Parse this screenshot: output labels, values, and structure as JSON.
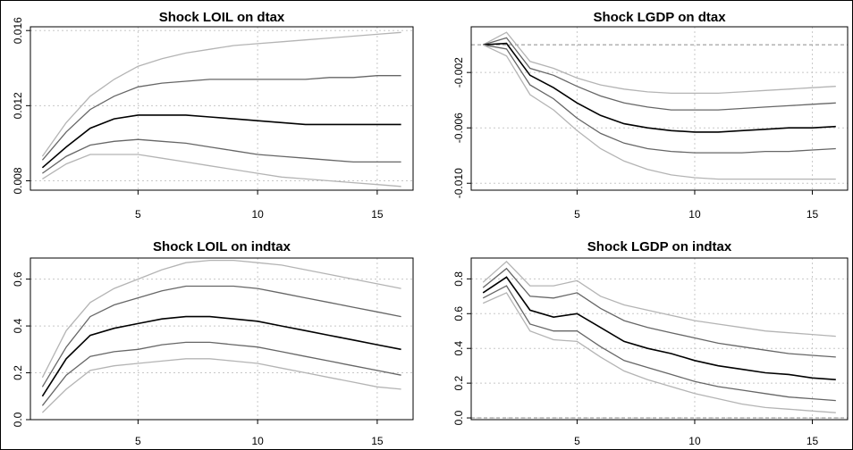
{
  "chart_data": [
    {
      "type": "line",
      "title": "Shock LOIL on dtax",
      "xlabel": "",
      "ylabel": "",
      "xlim": [
        0.5,
        16.5
      ],
      "ylim": [
        0.0075,
        0.0162
      ],
      "xticks": [
        5,
        10,
        15
      ],
      "xtick_labels": [
        "5",
        "10",
        "15"
      ],
      "yticks": [
        0.008,
        0.012,
        0.016
      ],
      "ytick_labels": [
        "0.008",
        "0.012",
        "0.016"
      ],
      "grid": true,
      "x": [
        1,
        2,
        3,
        4,
        5,
        6,
        7,
        8,
        9,
        10,
        11,
        12,
        13,
        14,
        15,
        16
      ],
      "series": [
        {
          "role": "outer-upper",
          "color": "#b4b4b4",
          "values": [
            0.0093,
            0.0111,
            0.0125,
            0.0134,
            0.0141,
            0.0145,
            0.0148,
            0.015,
            0.0152,
            0.0153,
            0.0154,
            0.0155,
            0.0156,
            0.0157,
            0.0158,
            0.0159
          ]
        },
        {
          "role": "inner-upper",
          "color": "#666666",
          "values": [
            0.0091,
            0.0106,
            0.0118,
            0.0125,
            0.013,
            0.0132,
            0.0133,
            0.0134,
            0.0134,
            0.0134,
            0.0134,
            0.0134,
            0.0135,
            0.0135,
            0.0136,
            0.0136
          ]
        },
        {
          "role": "central",
          "color": "#000000",
          "values": [
            0.0087,
            0.0098,
            0.0108,
            0.0113,
            0.0115,
            0.0115,
            0.0115,
            0.0114,
            0.0113,
            0.0112,
            0.0111,
            0.011,
            0.011,
            0.011,
            0.011,
            0.011
          ]
        },
        {
          "role": "inner-lower",
          "color": "#666666",
          "values": [
            0.0084,
            0.0093,
            0.0099,
            0.0101,
            0.0102,
            0.0101,
            0.01,
            0.0098,
            0.0096,
            0.0094,
            0.0093,
            0.0092,
            0.0091,
            0.009,
            0.009,
            0.009
          ]
        },
        {
          "role": "outer-lower",
          "color": "#b4b4b4",
          "values": [
            0.0081,
            0.0089,
            0.0094,
            0.0094,
            0.0094,
            0.0092,
            0.009,
            0.0088,
            0.0086,
            0.0084,
            0.0082,
            0.0081,
            0.008,
            0.0079,
            0.0078,
            0.0077
          ]
        }
      ]
    },
    {
      "type": "line",
      "title": "Shock LGDP on dtax",
      "xlabel": "",
      "ylabel": "",
      "xlim": [
        0.5,
        16.5
      ],
      "ylim": [
        -0.0105,
        0.0013
      ],
      "xticks": [
        5,
        10,
        15
      ],
      "xtick_labels": [
        "5",
        "10",
        "15"
      ],
      "yticks": [
        -0.01,
        -0.006,
        -0.002
      ],
      "ytick_labels": [
        "-0.010",
        "-0.006",
        "-0.002"
      ],
      "hline": 0,
      "grid": true,
      "x": [
        1,
        2,
        3,
        4,
        5,
        6,
        7,
        8,
        9,
        10,
        11,
        12,
        13,
        14,
        15,
        16
      ],
      "series": [
        {
          "role": "outer-upper",
          "color": "#b4b4b4",
          "values": [
            0.0,
            0.0009,
            -0.0012,
            -0.0017,
            -0.0024,
            -0.0029,
            -0.0032,
            -0.0034,
            -0.0035,
            -0.0035,
            -0.0035,
            -0.0034,
            -0.0033,
            -0.0032,
            -0.0031,
            -0.003
          ]
        },
        {
          "role": "inner-upper",
          "color": "#666666",
          "values": [
            0.0,
            0.0005,
            -0.0017,
            -0.0022,
            -0.003,
            -0.0037,
            -0.0042,
            -0.0045,
            -0.0047,
            -0.0047,
            -0.0047,
            -0.0046,
            -0.0045,
            -0.0044,
            -0.0043,
            -0.0042
          ]
        },
        {
          "role": "central",
          "color": "#000000",
          "values": [
            0.0,
            0.0001,
            -0.0022,
            -0.0031,
            -0.0042,
            -0.0051,
            -0.0057,
            -0.006,
            -0.0062,
            -0.0063,
            -0.0063,
            -0.0062,
            -0.0061,
            -0.006,
            -0.006,
            -0.0059
          ]
        },
        {
          "role": "inner-lower",
          "color": "#666666",
          "values": [
            0.0,
            -0.0003,
            -0.0029,
            -0.0039,
            -0.0053,
            -0.0064,
            -0.0071,
            -0.0075,
            -0.0077,
            -0.0078,
            -0.0078,
            -0.0078,
            -0.0077,
            -0.0077,
            -0.0076,
            -0.0075
          ]
        },
        {
          "role": "outer-lower",
          "color": "#b4b4b4",
          "values": [
            0.0,
            -0.0008,
            -0.0036,
            -0.0047,
            -0.0062,
            -0.0075,
            -0.0084,
            -0.009,
            -0.0094,
            -0.0096,
            -0.0097,
            -0.0097,
            -0.0097,
            -0.0097,
            -0.0097,
            -0.0097
          ]
        }
      ]
    },
    {
      "type": "line",
      "title": "Shock LOIL on indtax",
      "xlabel": "",
      "ylabel": "",
      "xlim": [
        0.5,
        16.5
      ],
      "ylim": [
        0,
        0.69
      ],
      "xticks": [
        5,
        10,
        15
      ],
      "xtick_labels": [
        "5",
        "10",
        "15"
      ],
      "yticks": [
        0.0,
        0.2,
        0.4,
        0.6
      ],
      "ytick_labels": [
        "0.0",
        "0.2",
        "0.4",
        "0.6"
      ],
      "hline": 0,
      "grid": true,
      "x": [
        1,
        2,
        3,
        4,
        5,
        6,
        7,
        8,
        9,
        10,
        11,
        12,
        13,
        14,
        15,
        16
      ],
      "series": [
        {
          "role": "outer-upper",
          "color": "#b4b4b4",
          "values": [
            0.18,
            0.38,
            0.5,
            0.56,
            0.6,
            0.64,
            0.67,
            0.68,
            0.68,
            0.67,
            0.66,
            0.64,
            0.62,
            0.6,
            0.58,
            0.56
          ]
        },
        {
          "role": "inner-upper",
          "color": "#666666",
          "values": [
            0.14,
            0.31,
            0.44,
            0.49,
            0.52,
            0.55,
            0.57,
            0.57,
            0.57,
            0.56,
            0.54,
            0.52,
            0.5,
            0.48,
            0.46,
            0.44
          ]
        },
        {
          "role": "central",
          "color": "#000000",
          "values": [
            0.1,
            0.26,
            0.36,
            0.39,
            0.41,
            0.43,
            0.44,
            0.44,
            0.43,
            0.42,
            0.4,
            0.38,
            0.36,
            0.34,
            0.32,
            0.3
          ]
        },
        {
          "role": "inner-lower",
          "color": "#666666",
          "values": [
            0.06,
            0.19,
            0.27,
            0.29,
            0.3,
            0.32,
            0.33,
            0.33,
            0.32,
            0.31,
            0.29,
            0.27,
            0.25,
            0.23,
            0.21,
            0.19
          ]
        },
        {
          "role": "outer-lower",
          "color": "#b4b4b4",
          "values": [
            0.03,
            0.13,
            0.21,
            0.23,
            0.24,
            0.25,
            0.26,
            0.26,
            0.25,
            0.24,
            0.22,
            0.2,
            0.18,
            0.16,
            0.14,
            0.13
          ]
        }
      ]
    },
    {
      "type": "line",
      "title": "Shock LGDP on indtax",
      "xlabel": "",
      "ylabel": "",
      "xlim": [
        0.5,
        16.5
      ],
      "ylim": [
        -0.01,
        0.92
      ],
      "xticks": [
        5,
        10,
        15
      ],
      "xtick_labels": [
        "5",
        "10",
        "15"
      ],
      "yticks": [
        0.0,
        0.2,
        0.4,
        0.6,
        0.8
      ],
      "ytick_labels": [
        "0.0",
        "0.2",
        "0.4",
        "0.6",
        "0.8"
      ],
      "hline": 0,
      "grid": true,
      "x": [
        1,
        2,
        3,
        4,
        5,
        6,
        7,
        8,
        9,
        10,
        11,
        12,
        13,
        14,
        15,
        16
      ],
      "series": [
        {
          "role": "outer-upper",
          "color": "#b4b4b4",
          "values": [
            0.78,
            0.9,
            0.76,
            0.76,
            0.79,
            0.7,
            0.65,
            0.62,
            0.59,
            0.56,
            0.54,
            0.52,
            0.5,
            0.49,
            0.48,
            0.47
          ]
        },
        {
          "role": "inner-upper",
          "color": "#666666",
          "values": [
            0.75,
            0.86,
            0.7,
            0.69,
            0.72,
            0.63,
            0.56,
            0.52,
            0.49,
            0.46,
            0.43,
            0.41,
            0.39,
            0.37,
            0.36,
            0.35
          ]
        },
        {
          "role": "central",
          "color": "#000000",
          "values": [
            0.72,
            0.81,
            0.62,
            0.58,
            0.6,
            0.52,
            0.44,
            0.4,
            0.37,
            0.33,
            0.3,
            0.28,
            0.26,
            0.25,
            0.23,
            0.22
          ]
        },
        {
          "role": "inner-lower",
          "color": "#666666",
          "values": [
            0.69,
            0.76,
            0.54,
            0.5,
            0.5,
            0.41,
            0.33,
            0.29,
            0.25,
            0.21,
            0.18,
            0.16,
            0.14,
            0.12,
            0.11,
            0.1
          ]
        },
        {
          "role": "outer-lower",
          "color": "#b4b4b4",
          "values": [
            0.66,
            0.72,
            0.5,
            0.45,
            0.44,
            0.35,
            0.27,
            0.22,
            0.18,
            0.14,
            0.11,
            0.08,
            0.06,
            0.05,
            0.04,
            0.03
          ]
        }
      ]
    }
  ]
}
